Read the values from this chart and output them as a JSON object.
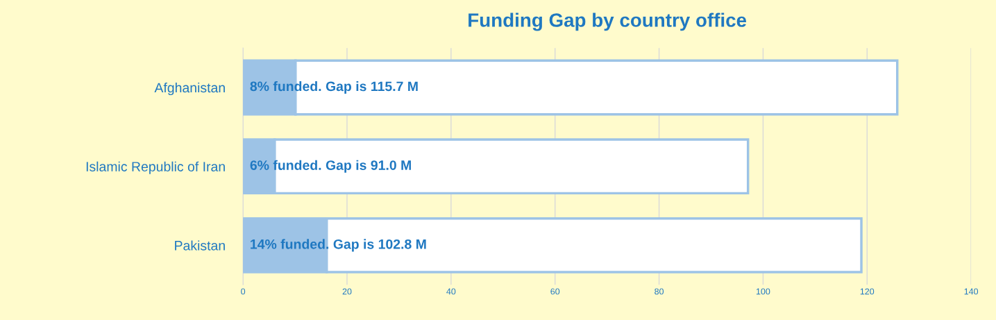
{
  "chart_data": {
    "type": "bar",
    "orientation": "horizontal",
    "stacked": true,
    "title": "Funding Gap by country office",
    "categories": [
      "Afghanistan",
      "Islamic Republic of Iran",
      "Pakistan"
    ],
    "series": [
      {
        "color": "#9dc3e6",
        "values": [
          10.1,
          6.1,
          16.1
        ]
      },
      {
        "color": "#ffffff",
        "values": [
          115.7,
          91.0,
          102.8
        ],
        "value_labels": [
          "8% funded. Gap is 115.7 M",
          "6% funded. Gap is 91.0 M",
          "14% funded. Gap is 102.8 M"
        ]
      }
    ],
    "xlim": [
      0,
      140
    ],
    "xticks": [
      0,
      20,
      40,
      60,
      80,
      100,
      120,
      140
    ],
    "grid": "x",
    "legend": false
  }
}
